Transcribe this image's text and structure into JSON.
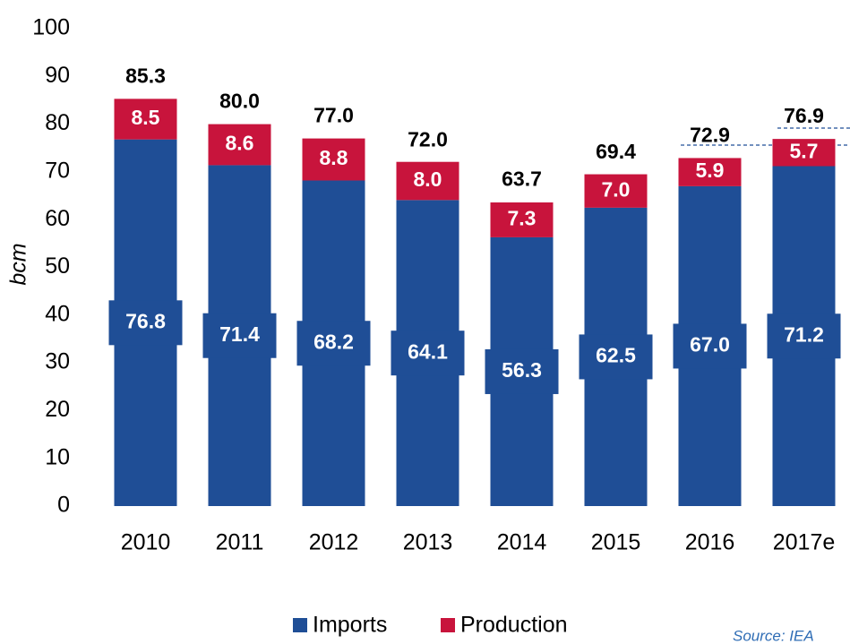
{
  "chart_data": {
    "type": "stacked_bar",
    "y_label": "bcm",
    "categories": [
      "2010",
      "2011",
      "2012",
      "2013",
      "2014",
      "2015",
      "2016",
      "2017e"
    ],
    "series": [
      {
        "name": "Imports",
        "color": "#1f4e96",
        "values": [
          76.8,
          71.4,
          68.2,
          64.1,
          56.3,
          62.5,
          67.0,
          71.2
        ],
        "value_labels": [
          "76.8",
          "71.4",
          "68.2",
          "64.1",
          "56.3",
          "62.5",
          "67.0",
          "71.2"
        ]
      },
      {
        "name": "Production",
        "color": "#c8143c",
        "values": [
          8.5,
          8.6,
          8.8,
          8.0,
          7.3,
          7.0,
          5.9,
          5.7
        ],
        "value_labels": [
          "8.5",
          "8.6",
          "8.8",
          "8.0",
          "7.3",
          "7.0",
          "5.9",
          "5.7"
        ]
      }
    ],
    "totals": {
      "values": [
        85.3,
        80.0,
        77.0,
        72.0,
        63.7,
        69.4,
        72.9,
        76.9
      ],
      "value_labels": [
        "85.3",
        "80.0",
        "77.0",
        "72.0",
        "63.7",
        "69.4",
        "72.9",
        "76.9"
      ]
    },
    "ylim": [
      0,
      100
    ],
    "yticks": [
      0,
      10,
      20,
      30,
      40,
      50,
      60,
      70,
      80,
      90,
      100
    ],
    "legend": "bottom",
    "source": "Source: IEA"
  }
}
